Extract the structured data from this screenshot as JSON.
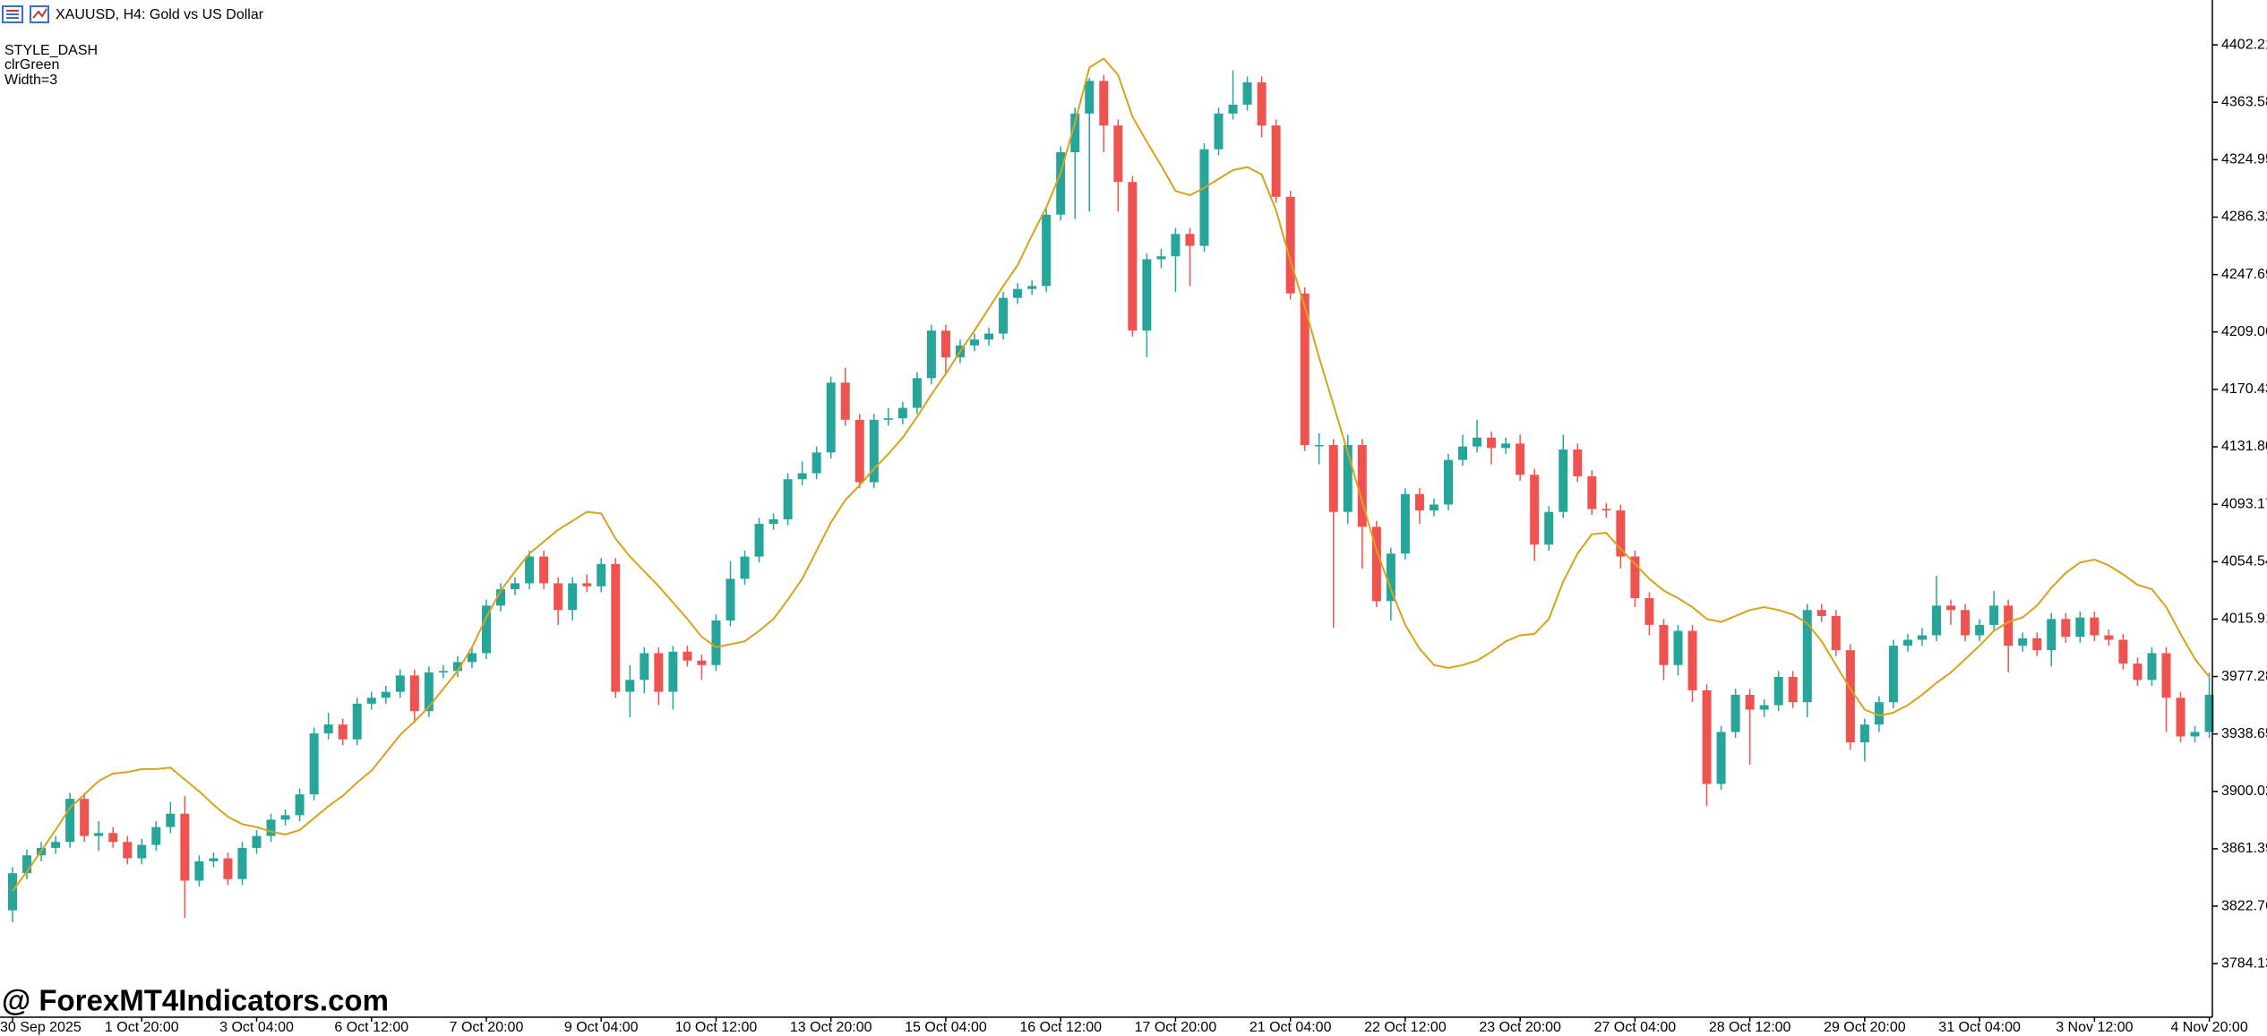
{
  "chart_data": {
    "type": "candlestick",
    "title": "XAUUSD, H4:  Gold vs US Dollar",
    "annotations": [
      "STYLE_DASH",
      "clrGreen",
      "Width=3"
    ],
    "watermark": "@ ForexMT4Indicators.com",
    "up_color": "#26a69a",
    "down_color": "#ef5350",
    "ylim": [
      3748.1,
      4432.4
    ],
    "yticks": [
      3784.13,
      3822.76,
      3861.39,
      3900.02,
      3938.65,
      3977.28,
      4015.91,
      4054.54,
      4093.17,
      {
        "value": 4131.8,
        "label": "4131.80"
      },
      4170.43,
      4209.06,
      4247.69,
      4286.32,
      4324.95,
      4363.58,
      4402.21
    ],
    "grid": false,
    "categories": [
      "30 Sep 2025",
      null,
      null,
      null,
      null,
      null,
      null,
      null,
      null,
      "1 Oct 20:00",
      null,
      null,
      null,
      null,
      null,
      null,
      null,
      "3 Oct 04:00",
      null,
      null,
      null,
      null,
      null,
      null,
      null,
      "6 Oct 12:00",
      null,
      null,
      null,
      null,
      null,
      null,
      null,
      "7 Oct 20:00",
      null,
      null,
      null,
      null,
      null,
      null,
      null,
      "9 Oct 04:00",
      null,
      null,
      null,
      null,
      null,
      null,
      null,
      "10 Oct 12:00",
      null,
      null,
      null,
      null,
      null,
      null,
      null,
      "13 Oct 20:00",
      null,
      null,
      null,
      null,
      null,
      null,
      null,
      "15 Oct 04:00",
      null,
      null,
      null,
      null,
      null,
      null,
      null,
      "16 Oct 12:00",
      null,
      null,
      null,
      null,
      null,
      null,
      null,
      "17 Oct 20:00",
      null,
      null,
      null,
      null,
      null,
      null,
      null,
      "21 Oct 04:00",
      null,
      null,
      null,
      null,
      null,
      null,
      null,
      "22 Oct 12:00",
      null,
      null,
      null,
      null,
      null,
      null,
      null,
      "23 Oct 20:00",
      null,
      null,
      null,
      null,
      null,
      null,
      null,
      "27 Oct 04:00",
      null,
      null,
      null,
      null,
      null,
      null,
      null,
      "28 Oct 12:00",
      null,
      null,
      null,
      null,
      null,
      null,
      null,
      "29 Oct 20:00",
      null,
      null,
      null,
      null,
      null,
      null,
      null,
      "31 Oct 04:00",
      null,
      null,
      null,
      null,
      null,
      null,
      null,
      "3 Nov 12:00",
      null,
      null,
      null,
      null,
      null,
      null,
      null,
      "4 Nov 20:00"
    ],
    "open": [
      3820,
      3845,
      3857,
      3862,
      3866,
      3895,
      3870,
      3872,
      3866,
      3855,
      3864,
      3876,
      3885,
      3840,
      3853,
      3855,
      3841,
      3862,
      3870,
      3881,
      3884,
      3898,
      3939,
      3945,
      3935,
      3959,
      3963,
      3967,
      3978,
      3954,
      3980,
      3981,
      3987,
      3993,
      4025,
      4036,
      4040,
      4058,
      4040,
      4022,
      4040,
      4038,
      4053,
      3967,
      3975,
      3993,
      3967,
      3994,
      3988,
      3985,
      4015,
      4043,
      4058,
      4080,
      4083,
      4110,
      4114,
      4128,
      4175,
      4150,
      4108,
      4150,
      4151,
      4158,
      4178,
      4210,
      4192,
      4200,
      4204,
      4208,
      4232,
      4238,
      4240,
      4288,
      4330,
      4356,
      4378,
      4348,
      4310,
      4210,
      4258,
      4260,
      4275,
      4267,
      4332,
      4356,
      4362,
      4377,
      4348,
      4300,
      4235,
      4133,
      4133,
      4088,
      4133,
      4078,
      4028,
      4060,
      4100,
      4089,
      4093,
      4123,
      4132,
      4138,
      4131,
      4134,
      4113,
      4066,
      4088,
      4130,
      4112,
      4090,
      4089,
      4058,
      4030,
      4012,
      3985,
      4008,
      3968,
      3905,
      3940,
      3965,
      3955,
      3958,
      3977,
      3960,
      4022,
      4018,
      3995,
      3933,
      3945,
      3960,
      3998,
      4002,
      4005,
      4025,
      4022,
      4005,
      4012,
      4025,
      3998,
      4003,
      3995,
      4016,
      4004,
      4017,
      4005,
      4002,
      3986,
      3975,
      3993,
      3963,
      3937,
      3940
    ],
    "high": [
      3849,
      3861,
      3866,
      3870,
      3899,
      3899,
      3880,
      3876,
      3870,
      3868,
      3880,
      3893,
      3897,
      3857,
      3859,
      3859,
      3866,
      3874,
      3885,
      3888,
      3902,
      3943,
      3953,
      3949,
      3963,
      3967,
      3971,
      3982,
      3982,
      3984,
      3985,
      3991,
      3997,
      4029,
      4040,
      4044,
      4062,
      4062,
      4044,
      4044,
      4046,
      4057,
      4057,
      3985,
      3997,
      3997,
      3998,
      3998,
      3992,
      4019,
      4055,
      4062,
      4084,
      4087,
      4114,
      4122,
      4132,
      4179,
      4185,
      4154,
      4154,
      4158,
      4162,
      4182,
      4214,
      4214,
      4204,
      4208,
      4212,
      4236,
      4242,
      4244,
      4292,
      4334,
      4360,
      4380,
      4382,
      4352,
      4314,
      4262,
      4265,
      4279,
      4279,
      4336,
      4360,
      4385,
      4381,
      4381,
      4352,
      4304,
      4239,
      4141,
      4137,
      4140,
      4137,
      4082,
      4064,
      4104,
      4104,
      4097,
      4127,
      4140,
      4150,
      4142,
      4138,
      4140,
      4117,
      4092,
      4140,
      4134,
      4116,
      4094,
      4093,
      4062,
      4034,
      4016,
      4012,
      4012,
      3972,
      3944,
      3969,
      3969,
      3962,
      3981,
      3981,
      4026,
      4026,
      4022,
      3999,
      3949,
      3964,
      4002,
      4006,
      4010,
      4045,
      4029,
      4026,
      4016,
      4035,
      4029,
      4007,
      4007,
      4020,
      4020,
      4021,
      4021,
      4009,
      4006,
      3990,
      3997,
      3997,
      3967,
      3944,
      3980
    ],
    "low": [
      3812,
      3841,
      3853,
      3858,
      3862,
      3866,
      3860,
      3862,
      3851,
      3851,
      3860,
      3872,
      3815,
      3836,
      3849,
      3837,
      3837,
      3858,
      3866,
      3877,
      3880,
      3894,
      3935,
      3931,
      3931,
      3955,
      3959,
      3963,
      3946,
      3950,
      3976,
      3977,
      3983,
      3989,
      4021,
      4032,
      4036,
      4036,
      4012,
      4015,
      4034,
      4034,
      3963,
      3950,
      3966,
      3958,
      3955,
      3984,
      3975,
      3981,
      4011,
      4039,
      4054,
      4076,
      4079,
      4106,
      4110,
      4124,
      4146,
      4104,
      4104,
      4146,
      4147,
      4154,
      4174,
      4180,
      4188,
      4196,
      4200,
      4204,
      4228,
      4234,
      4236,
      4284,
      4285,
      4290,
      4330,
      4290,
      4206,
      4192,
      4252,
      4236,
      4240,
      4263,
      4328,
      4352,
      4358,
      4340,
      4296,
      4231,
      4129,
      4120,
      4010,
      4080,
      4050,
      4024,
      4015,
      4056,
      4080,
      4085,
      4089,
      4119,
      4128,
      4120,
      4127,
      4109,
      4055,
      4062,
      4084,
      4108,
      4086,
      4084,
      4050,
      4024,
      4005,
      3975,
      3978,
      3960,
      3890,
      3901,
      3936,
      3918,
      3950,
      3954,
      3956,
      3950,
      4014,
      3991,
      3928,
      3920,
      3940,
      3956,
      3994,
      3998,
      4001,
      4012,
      4001,
      4001,
      4008,
      3980,
      3994,
      3991,
      3984,
      4000,
      4000,
      4001,
      3998,
      3982,
      3971,
      3971,
      3940,
      3933,
      3933,
      3936
    ],
    "close": [
      3845,
      3857,
      3862,
      3866,
      3895,
      3870,
      3872,
      3866,
      3855,
      3864,
      3876,
      3885,
      3840,
      3853,
      3855,
      3841,
      3862,
      3870,
      3881,
      3884,
      3898,
      3939,
      3945,
      3935,
      3959,
      3963,
      3967,
      3978,
      3954,
      3980,
      3981,
      3987,
      3993,
      4025,
      4036,
      4040,
      4058,
      4040,
      4022,
      4040,
      4038,
      4053,
      3967,
      3975,
      3993,
      3967,
      3994,
      3988,
      3985,
      4015,
      4043,
      4058,
      4080,
      4083,
      4110,
      4114,
      4128,
      4175,
      4150,
      4108,
      4150,
      4151,
      4158,
      4178,
      4210,
      4192,
      4200,
      4204,
      4208,
      4232,
      4238,
      4240,
      4288,
      4330,
      4356,
      4378,
      4348,
      4310,
      4210,
      4258,
      4260,
      4275,
      4267,
      4332,
      4356,
      4362,
      4377,
      4348,
      4300,
      4235,
      4133,
      4133,
      4088,
      4133,
      4078,
      4028,
      4060,
      4100,
      4089,
      4093,
      4123,
      4132,
      4138,
      4131,
      4134,
      4113,
      4066,
      4088,
      4130,
      4112,
      4090,
      4089,
      4058,
      4030,
      4012,
      3985,
      4008,
      3968,
      3905,
      3940,
      3965,
      3955,
      3958,
      3977,
      3960,
      4022,
      4018,
      3995,
      3933,
      3945,
      3960,
      3998,
      4002,
      4005,
      4025,
      4022,
      4005,
      4012,
      4025,
      3998,
      4003,
      3995,
      4016,
      4004,
      4017,
      4005,
      4002,
      3986,
      3975,
      3993,
      3963,
      3937,
      3940,
      3965
    ],
    "line": {
      "color": "#d9a21b",
      "values": [
        3833,
        3846,
        3860,
        3874,
        3889,
        3898,
        3907,
        3912,
        3913,
        3915,
        3915,
        3916,
        3908,
        3900,
        3891,
        3883,
        3878,
        3876,
        3873,
        3871,
        3874,
        3882,
        3890,
        3897,
        3906,
        3914,
        3926,
        3938,
        3947,
        3957,
        3969,
        3981,
        3997,
        4017,
        4035,
        4048,
        4060,
        4068,
        4076,
        4082,
        4088,
        4087,
        4070,
        4058,
        4048,
        4038,
        4027,
        4016,
        4004,
        3997,
        3999,
        4001,
        4008,
        4016,
        4029,
        4043,
        4062,
        4081,
        4096,
        4106,
        4117,
        4127,
        4138,
        4152,
        4167,
        4181,
        4196,
        4210,
        4225,
        4240,
        4254,
        4274,
        4293,
        4316,
        4350,
        4387,
        4393,
        4382,
        4354,
        4337,
        4321,
        4304,
        4301,
        4306,
        4312,
        4318,
        4320,
        4315,
        4291,
        4257,
        4226,
        4192,
        4160,
        4128,
        4095,
        4062,
        4036,
        4012,
        3996,
        3985,
        3983,
        3985,
        3988,
        3994,
        4001,
        4005,
        4006,
        4016,
        4041,
        4060,
        4073,
        4074,
        4063,
        4053,
        4043,
        4035,
        4030,
        4024,
        4016,
        4014,
        4018,
        4022,
        4024,
        4022,
        4019,
        4013,
        4001,
        3985,
        3969,
        3955,
        3951,
        3953,
        3958,
        3965,
        3973,
        3980,
        3989,
        3998,
        4008,
        4014,
        4017,
        4025,
        4037,
        4047,
        4054,
        4056,
        4052,
        4046,
        4039,
        4036,
        4024,
        4006,
        3989,
        3977
      ]
    }
  }
}
